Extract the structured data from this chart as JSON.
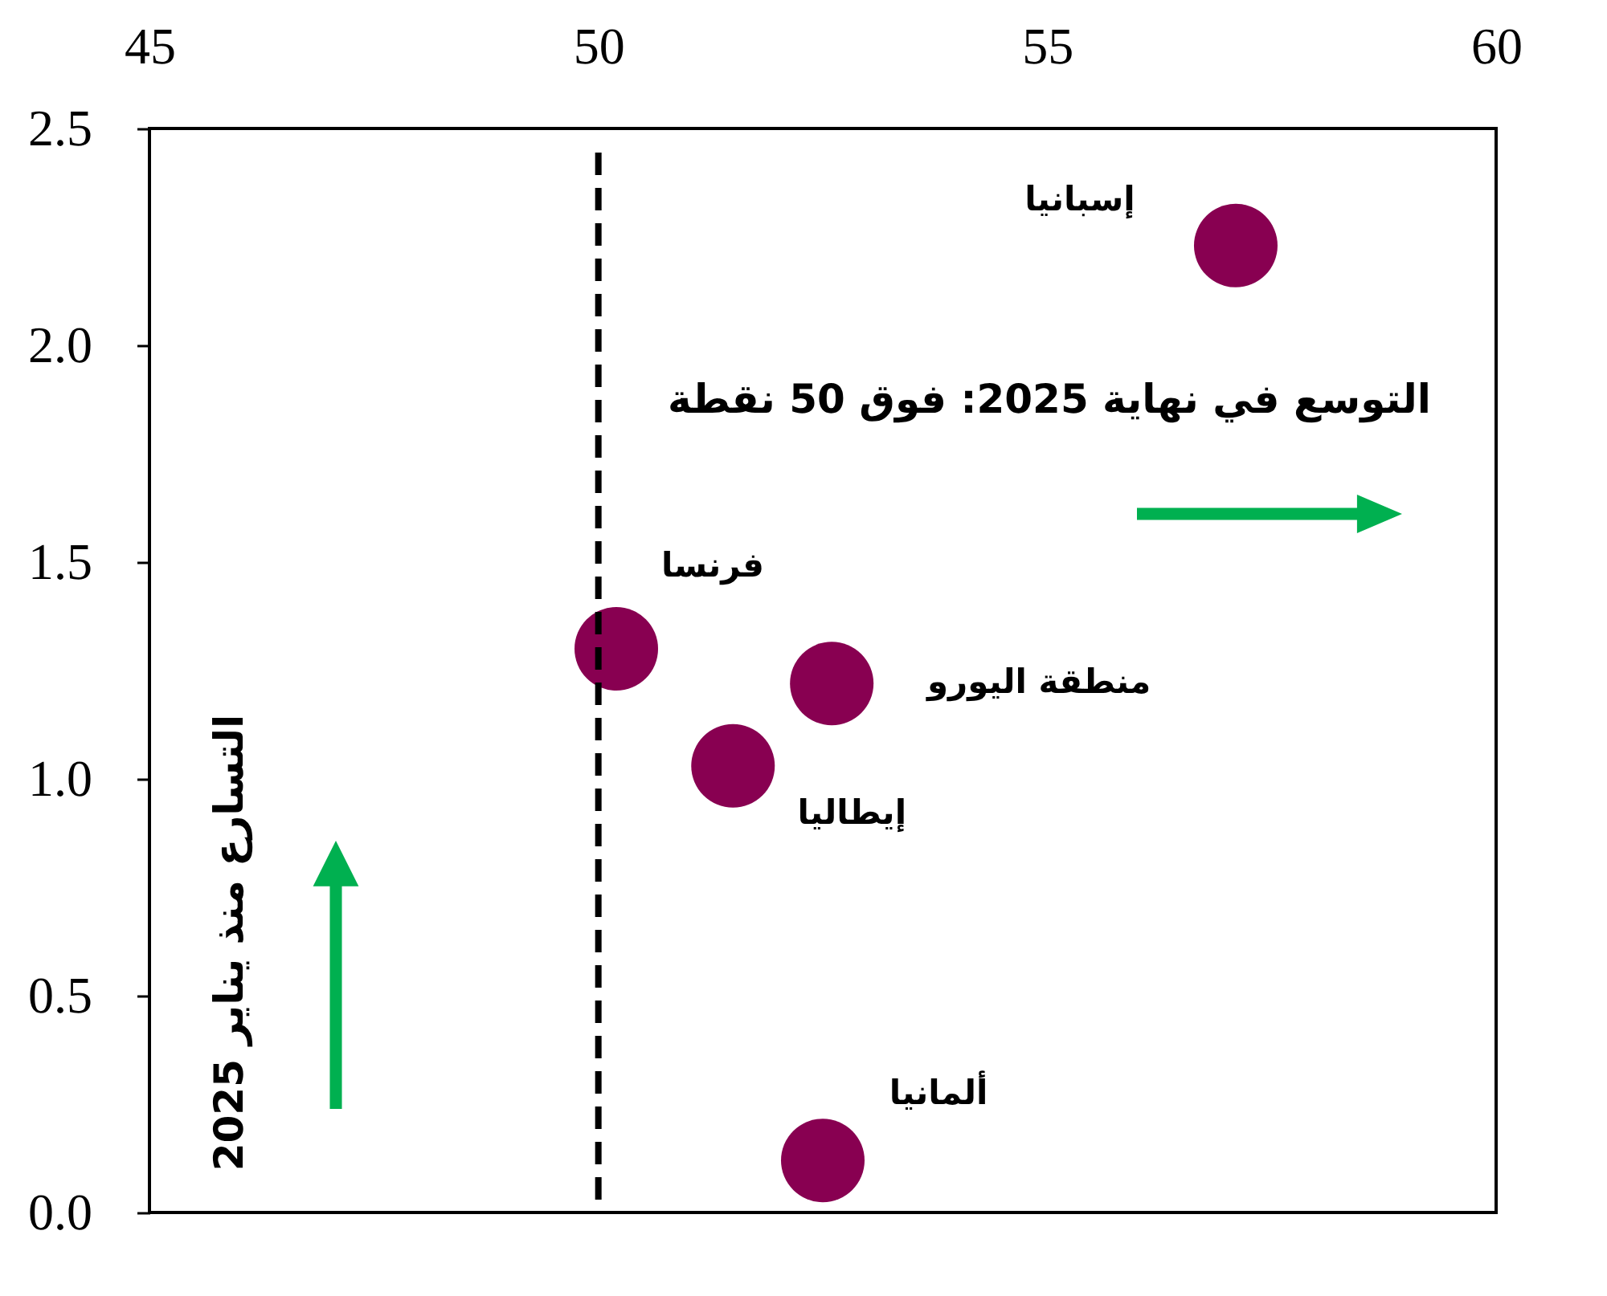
{
  "chart_data": {
    "type": "scatter",
    "xlim": [
      45,
      60
    ],
    "xticks": [
      45,
      50,
      55,
      60
    ],
    "ylim": [
      0,
      2.5
    ],
    "yticks": [
      {
        "value": 0,
        "label": "0.0"
      },
      0.5,
      {
        "value": 1,
        "label": "1.0"
      },
      1.5,
      {
        "value": 2,
        "label": "2.0"
      },
      2.5
    ],
    "grid": false,
    "legend": false,
    "marker": "circle",
    "series": [
      {
        "name": "إسبانيا",
        "color": "#880051",
        "x": [
          57.1
        ],
        "values": [
          2.23
        ]
      },
      {
        "name": "فرنسا",
        "color": "#880051",
        "x": [
          50.2
        ],
        "values": [
          1.3
        ]
      },
      {
        "name": "منطقة اليورو",
        "color": "#880051",
        "x": [
          52.6
        ],
        "values": [
          1.22
        ]
      },
      {
        "name": "إيطاليا",
        "color": "#880051",
        "x": [
          51.5
        ],
        "values": [
          1.03
        ]
      },
      {
        "name": "ألمانيا",
        "color": "#880051",
        "x": [
          52.5
        ],
        "values": [
          0.12
        ]
      }
    ],
    "ref_lines": [
      {
        "axis": "x",
        "value": 50,
        "color": "#000000",
        "line_style": "dashed"
      }
    ],
    "annotations": [
      "التوسع في نهاية 2025: فوق 50 نقطة",
      "التسارع منذ يناير 2025"
    ]
  }
}
